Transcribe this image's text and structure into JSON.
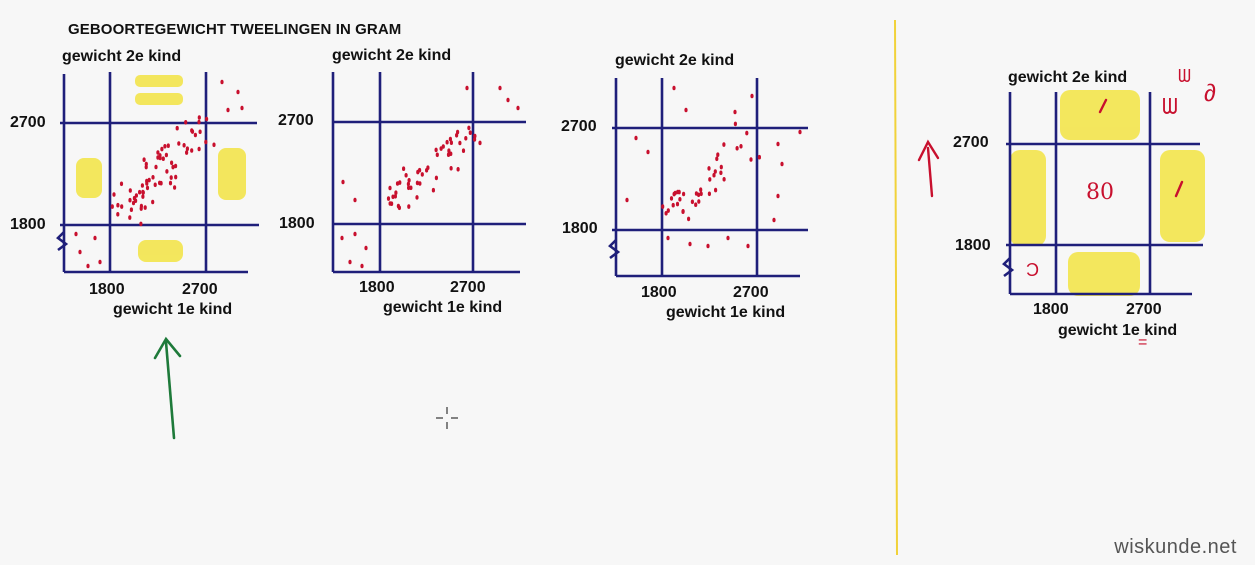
{
  "title": "GEBOORTEGEWICHT TWEELINGEN IN GRAM",
  "axis": {
    "y_label": "gewicht 2e kind",
    "x_label": "gewicht 1e kind",
    "tick_low": "1800",
    "tick_high": "2700"
  },
  "annotation": {
    "region_count": "80",
    "cell_mark": "1",
    "corner_mark": "Ɔ",
    "star_scrawl": "ᗯ",
    "loop_scrawl": "∂",
    "under_mark": "="
  },
  "watermark": "wiskunde.net",
  "colors": {
    "axis": "#1f1f7a",
    "points": "#c8102e",
    "highlight": "#f2e12a",
    "divider": "#f1d23a",
    "green_arrow": "#1e7a3a",
    "red_arrow": "#c8102e"
  }
}
